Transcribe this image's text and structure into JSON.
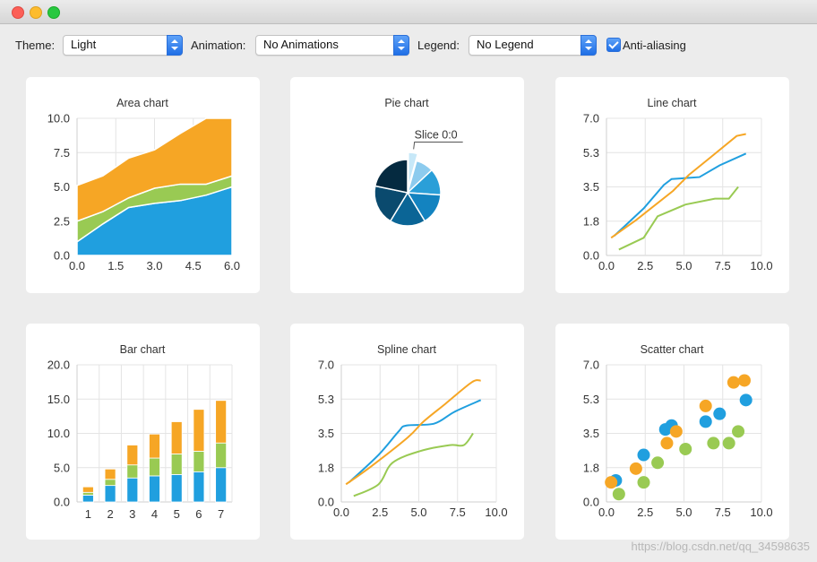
{
  "toolbar": {
    "theme_label": "Theme:",
    "theme_value": "Light",
    "animation_label": "Animation:",
    "animation_value": "No Animations",
    "legend_label": "Legend:",
    "legend_value": "No Legend",
    "antialias_label": "Anti-aliasing",
    "antialias_checked": true
  },
  "colors": {
    "blue": "#209fdf",
    "green": "#99ca53",
    "orange": "#f6a625",
    "grid": "#e4e4e4",
    "axis": "#cfcfcf"
  },
  "watermark": "https://blog.csdn.net/qq_34598635",
  "chart_data": [
    {
      "id": "area",
      "type": "area",
      "title": "Area chart",
      "xlim": [
        0,
        6
      ],
      "ylim": [
        0,
        10
      ],
      "x_ticks": [
        "0.0",
        "1.5",
        "3.0",
        "4.5",
        "6.0"
      ],
      "y_ticks": [
        "0.0",
        "2.5",
        "5.0",
        "7.5",
        "10.0"
      ],
      "x": [
        0,
        1,
        2,
        3,
        4,
        5,
        6
      ],
      "series": [
        {
          "color": "#209fdf",
          "values": [
            1.0,
            2.3,
            3.5,
            3.8,
            4.0,
            4.4,
            5.0
          ]
        },
        {
          "color": "#99ca53",
          "values": [
            2.5,
            3.2,
            4.2,
            4.9,
            5.2,
            5.2,
            5.8
          ]
        },
        {
          "color": "#f6a625",
          "values": [
            5.1,
            5.8,
            7.1,
            7.7,
            8.9,
            10.0,
            10.0
          ]
        }
      ]
    },
    {
      "id": "pie",
      "type": "pie",
      "title": "Pie chart",
      "slice_label": "Slice 0:0",
      "slices": [
        {
          "value": 1,
          "color": "#c7e8f8",
          "exploded": true
        },
        {
          "value": 2,
          "color": "#8ccbee"
        },
        {
          "value": 3,
          "color": "#2a9fd8"
        },
        {
          "value": 3.5,
          "color": "#1383c0"
        },
        {
          "value": 4,
          "color": "#0b6596"
        },
        {
          "value": 4.5,
          "color": "#0a4a6e"
        },
        {
          "value": 5,
          "color": "#052a40"
        }
      ]
    },
    {
      "id": "line",
      "type": "line",
      "title": "Line chart",
      "xlim": [
        0,
        10
      ],
      "ylim": [
        0,
        7
      ],
      "x_ticks": [
        "0.0",
        "2.5",
        "5.0",
        "7.5",
        "10.0"
      ],
      "y_ticks": [
        "0.0",
        "1.8",
        "3.5",
        "5.3",
        "7.0"
      ],
      "series": [
        {
          "color": "#209fdf",
          "points": [
            [
              0.5,
              1.0
            ],
            [
              2.4,
              2.4
            ],
            [
              3.7,
              3.6
            ],
            [
              4.2,
              3.9
            ],
            [
              6.0,
              4.0
            ],
            [
              7.3,
              4.6
            ],
            [
              9.0,
              5.2
            ]
          ]
        },
        {
          "color": "#f6a625",
          "points": [
            [
              0.3,
              0.9
            ],
            [
              1.9,
              1.8
            ],
            [
              4.3,
              3.3
            ],
            [
              5.3,
              4.1
            ],
            [
              6.7,
              5.0
            ],
            [
              8.4,
              6.1
            ],
            [
              9.0,
              6.2
            ]
          ]
        },
        {
          "color": "#99ca53",
          "points": [
            [
              0.8,
              0.3
            ],
            [
              2.4,
              0.9
            ],
            [
              3.3,
              2.0
            ],
            [
              5.1,
              2.6
            ],
            [
              7.0,
              2.9
            ],
            [
              7.9,
              2.9
            ],
            [
              8.5,
              3.5
            ]
          ]
        }
      ]
    },
    {
      "id": "bar",
      "type": "bar",
      "title": "Bar chart",
      "ylim": [
        0,
        20
      ],
      "y_ticks": [
        "0.0",
        "5.0",
        "10.0",
        "15.0",
        "20.0"
      ],
      "categories": [
        "1",
        "2",
        "3",
        "4",
        "5",
        "6",
        "7"
      ],
      "series": [
        {
          "color": "#209fdf",
          "values": [
            1.0,
            2.4,
            3.5,
            3.8,
            4.0,
            4.4,
            5.0
          ]
        },
        {
          "color": "#99ca53",
          "values": [
            0.4,
            0.9,
            1.9,
            2.6,
            3.0,
            3.0,
            3.6
          ]
        },
        {
          "color": "#f6a625",
          "values": [
            0.8,
            1.5,
            2.9,
            3.5,
            4.7,
            6.1,
            6.2
          ]
        }
      ]
    },
    {
      "id": "spline",
      "type": "line",
      "title": "Spline chart",
      "xlim": [
        0,
        10
      ],
      "ylim": [
        0,
        7
      ],
      "x_ticks": [
        "0.0",
        "2.5",
        "5.0",
        "7.5",
        "10.0"
      ],
      "y_ticks": [
        "0.0",
        "1.8",
        "3.5",
        "5.3",
        "7.0"
      ],
      "series": [
        {
          "color": "#209fdf",
          "points": [
            [
              0.5,
              1.0
            ],
            [
              2.4,
              2.4
            ],
            [
              3.7,
              3.6
            ],
            [
              4.2,
              3.9
            ],
            [
              6.0,
              4.0
            ],
            [
              7.3,
              4.6
            ],
            [
              9.0,
              5.2
            ]
          ]
        },
        {
          "color": "#f6a625",
          "points": [
            [
              0.3,
              0.9
            ],
            [
              1.9,
              1.8
            ],
            [
              4.3,
              3.3
            ],
            [
              5.3,
              4.1
            ],
            [
              6.7,
              5.0
            ],
            [
              8.4,
              6.1
            ],
            [
              9.0,
              6.2
            ]
          ]
        },
        {
          "color": "#99ca53",
          "points": [
            [
              0.8,
              0.3
            ],
            [
              2.4,
              0.9
            ],
            [
              3.3,
              2.0
            ],
            [
              5.1,
              2.6
            ],
            [
              7.0,
              2.9
            ],
            [
              7.9,
              2.9
            ],
            [
              8.5,
              3.5
            ]
          ]
        }
      ]
    },
    {
      "id": "scatter",
      "type": "scatter",
      "title": "Scatter chart",
      "xlim": [
        0,
        10
      ],
      "ylim": [
        0,
        7
      ],
      "x_ticks": [
        "0.0",
        "2.5",
        "5.0",
        "7.5",
        "10.0"
      ],
      "y_ticks": [
        "0.0",
        "1.8",
        "3.5",
        "5.3",
        "7.0"
      ],
      "series": [
        {
          "color": "#209fdf",
          "points": [
            [
              0.6,
              1.1
            ],
            [
              2.4,
              2.4
            ],
            [
              3.8,
              3.7
            ],
            [
              4.2,
              3.9
            ],
            [
              6.4,
              4.1
            ],
            [
              7.3,
              4.5
            ],
            [
              9.0,
              5.2
            ]
          ]
        },
        {
          "color": "#f6a625",
          "points": [
            [
              0.3,
              1.0
            ],
            [
              1.9,
              1.7
            ],
            [
              3.9,
              3.0
            ],
            [
              4.5,
              3.6
            ],
            [
              6.4,
              4.9
            ],
            [
              8.2,
              6.1
            ],
            [
              8.9,
              6.2
            ]
          ]
        },
        {
          "color": "#99ca53",
          "points": [
            [
              0.8,
              0.4
            ],
            [
              2.4,
              1.0
            ],
            [
              3.3,
              2.0
            ],
            [
              5.1,
              2.7
            ],
            [
              6.9,
              3.0
            ],
            [
              7.9,
              3.0
            ],
            [
              8.5,
              3.6
            ]
          ]
        }
      ]
    }
  ]
}
